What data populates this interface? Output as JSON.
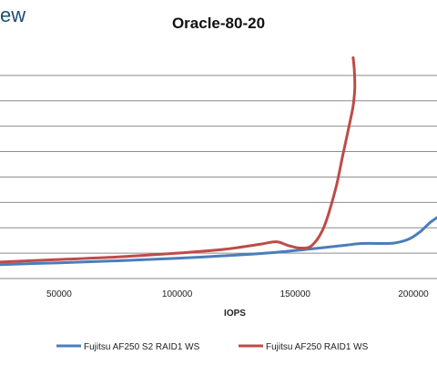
{
  "logo_fragment": "ew",
  "chart_data": {
    "type": "line",
    "title": "Oracle-80-20",
    "xlabel": "IOPS",
    "ylabel": "",
    "xlim": [
      25000,
      210000
    ],
    "ylim": [
      0,
      9
    ],
    "x_ticks": [
      {
        "value": 50000,
        "label": "50000"
      },
      {
        "value": 100000,
        "label": "100000"
      },
      {
        "value": 150000,
        "label": "150000"
      },
      {
        "value": 200000,
        "label": "200000"
      }
    ],
    "y_gridlines": [
      1,
      2,
      3,
      4,
      5,
      6,
      7,
      8
    ],
    "grid": true,
    "legend_position": "bottom",
    "series": [
      {
        "name": "Fujitsu AF250 S2 RAID1 WS",
        "color": "#4a7ebb",
        "points": [
          [
            25000,
            0.55
          ],
          [
            50000,
            0.62
          ],
          [
            75000,
            0.7
          ],
          [
            100000,
            0.8
          ],
          [
            125000,
            0.92
          ],
          [
            140000,
            1.02
          ],
          [
            155000,
            1.15
          ],
          [
            170000,
            1.3
          ],
          [
            178000,
            1.38
          ],
          [
            185000,
            1.38
          ],
          [
            192000,
            1.4
          ],
          [
            198000,
            1.55
          ],
          [
            203000,
            1.85
          ],
          [
            207000,
            2.2
          ],
          [
            210000,
            2.4
          ]
        ]
      },
      {
        "name": "Fujitsu AF250 RAID1 WS",
        "color": "#be4b48",
        "points": [
          [
            25000,
            0.65
          ],
          [
            50000,
            0.75
          ],
          [
            75000,
            0.85
          ],
          [
            100000,
            1.0
          ],
          [
            120000,
            1.15
          ],
          [
            135000,
            1.35
          ],
          [
            142000,
            1.45
          ],
          [
            147000,
            1.3
          ],
          [
            152000,
            1.2
          ],
          [
            157000,
            1.3
          ],
          [
            162000,
            2.0
          ],
          [
            167000,
            3.5
          ],
          [
            170000,
            4.8
          ],
          [
            173000,
            6.1
          ],
          [
            174500,
            6.8
          ],
          [
            175200,
            7.5
          ],
          [
            175000,
            8.2
          ],
          [
            174500,
            8.7
          ]
        ]
      }
    ]
  }
}
